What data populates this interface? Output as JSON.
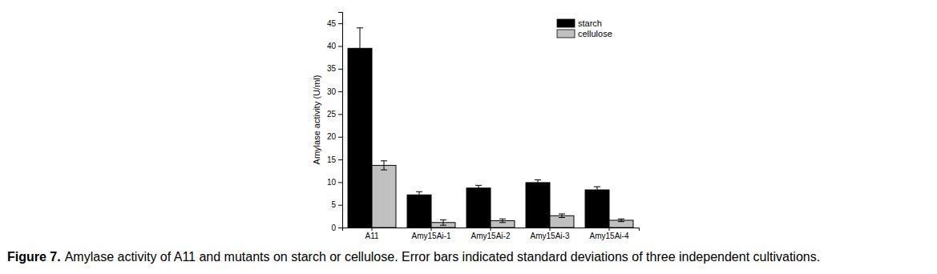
{
  "chart_data": {
    "type": "bar",
    "caption": [
      "Figure 7.",
      "Amylase activity of A11 and mutants on starch or cellulose. Error bars indicated standard deviations of three independent cultivations."
    ],
    "y_label": "Amylase activity (U/ml)",
    "categories": [
      "A11",
      "Amy15Ai-1",
      "Amy15Ai-2",
      "Amy15Ai-3",
      "Amy15Ai-4"
    ],
    "series": [
      {
        "name": "starch",
        "color": "#000000",
        "values": [
          39.5,
          7.2,
          8.7,
          9.9,
          8.3
        ],
        "errors": [
          4.5,
          0.7,
          0.6,
          0.6,
          0.7
        ]
      },
      {
        "name": "cellulose",
        "color": "#c0c0c0",
        "values": [
          13.7,
          1.1,
          1.5,
          2.6,
          1.6
        ],
        "errors": [
          1.0,
          0.6,
          0.4,
          0.4,
          0.3
        ]
      }
    ],
    "ylim": [
      0,
      47.5
    ],
    "yticks": [
      0,
      5,
      10,
      15,
      20,
      25,
      30,
      35,
      40,
      45
    ],
    "legend": "top-right",
    "grid": false
  }
}
